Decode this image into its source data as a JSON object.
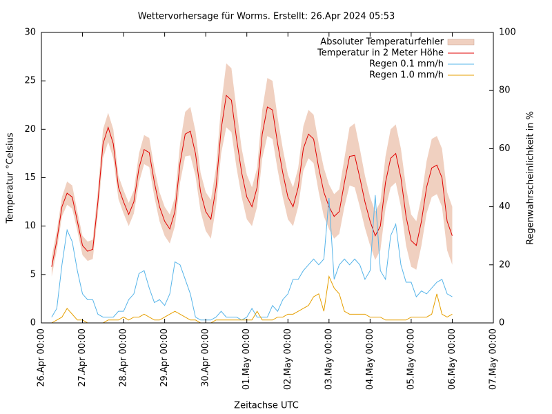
{
  "chart_data": {
    "type": "line",
    "title": "Wettervorhersage für Worms. Erstellt: 26.Apr 2024 05:53",
    "x_label": "Zeitachse UTC",
    "y_label": "Temperatur °Celsius",
    "y2_label": "Regenwahrscheinlichkeit in %",
    "xlim": [
      0,
      264
    ],
    "xticks": [
      {
        "value": 0,
        "label": "26.Apr 00:00"
      },
      {
        "value": 24,
        "label": "27.Apr 00:00"
      },
      {
        "value": 48,
        "label": "28.Apr 00:00"
      },
      {
        "value": 72,
        "label": "29.Apr 00:00"
      },
      {
        "value": 96,
        "label": "30.Apr 00:00"
      },
      {
        "value": 120,
        "label": "01.May 00:00"
      },
      {
        "value": 144,
        "label": "02.May 00:00"
      },
      {
        "value": 168,
        "label": "03.May 00:00"
      },
      {
        "value": 192,
        "label": "04.May 00:00"
      },
      {
        "value": 216,
        "label": "05.May 00:00"
      },
      {
        "value": 240,
        "label": "06.May 00:00"
      },
      {
        "value": 264,
        "label": "07.May 00:00"
      }
    ],
    "ylim": [
      0,
      30
    ],
    "yticks": [
      0,
      5,
      10,
      15,
      20,
      25,
      30
    ],
    "y2lim": [
      0,
      100
    ],
    "y2ticks": [
      0,
      20,
      40,
      60,
      80,
      100
    ],
    "grid": false,
    "legend": "top-right",
    "x": [
      6,
      9,
      12,
      15,
      18,
      21,
      24,
      27,
      30,
      33,
      36,
      39,
      42,
      45,
      48,
      51,
      54,
      57,
      60,
      63,
      66,
      69,
      72,
      75,
      78,
      81,
      84,
      87,
      90,
      93,
      96,
      99,
      102,
      105,
      108,
      111,
      114,
      117,
      120,
      123,
      126,
      129,
      132,
      135,
      138,
      141,
      144,
      147,
      150,
      153,
      156,
      159,
      162,
      165,
      168,
      171,
      174,
      177,
      180,
      183,
      186,
      189,
      192,
      195,
      198,
      201,
      204,
      207,
      210,
      213,
      216,
      219,
      222,
      225,
      228,
      231,
      234,
      237,
      240
    ],
    "series": [
      {
        "name": "Absoluter Temperaturfehler",
        "style": "band",
        "color": "#f0d0c0",
        "values": [
          1.0,
          1.0,
          1.0,
          1.2,
          1.2,
          1.0,
          1.0,
          1.0,
          1.0,
          1.2,
          1.5,
          1.5,
          1.5,
          1.2,
          1.2,
          1.2,
          1.2,
          1.5,
          1.5,
          1.5,
          1.5,
          1.5,
          1.5,
          1.5,
          1.5,
          2.0,
          2.3,
          2.5,
          2.3,
          2.0,
          2.0,
          2.0,
          2.0,
          2.5,
          3.3,
          3.3,
          3.0,
          2.5,
          2.3,
          2.0,
          2.0,
          2.5,
          3.0,
          3.0,
          2.7,
          2.5,
          2.3,
          2.0,
          2.0,
          2.3,
          2.5,
          2.5,
          2.5,
          2.5,
          2.3,
          2.3,
          2.3,
          2.5,
          3.0,
          3.3,
          3.0,
          2.7,
          2.5,
          2.5,
          2.5,
          2.7,
          3.0,
          3.0,
          3.0,
          3.0,
          2.7,
          2.5,
          2.5,
          2.7,
          3.0,
          3.0,
          3.0,
          3.0,
          3.0
        ]
      },
      {
        "name": "Temperatur in 2 Meter Höhe",
        "style": "line",
        "color": "#e00000",
        "values": [
          5.8,
          8.5,
          12.0,
          13.4,
          13.0,
          10.5,
          8.0,
          7.4,
          7.6,
          12.5,
          18.5,
          20.2,
          18.5,
          14.0,
          12.5,
          11.2,
          12.5,
          16.0,
          17.9,
          17.6,
          14.5,
          12.0,
          10.5,
          9.7,
          11.5,
          16.5,
          19.5,
          19.8,
          17.5,
          13.5,
          11.5,
          10.7,
          14.0,
          20.0,
          23.5,
          23.0,
          19.0,
          15.5,
          13.0,
          12.0,
          14.0,
          19.5,
          22.3,
          22.0,
          18.5,
          15.5,
          13.0,
          12.0,
          14.0,
          18.0,
          19.5,
          19.0,
          16.0,
          13.5,
          12.0,
          11.0,
          11.5,
          14.5,
          17.2,
          17.3,
          15.0,
          12.5,
          10.5,
          9.0,
          10.0,
          14.5,
          17.0,
          17.5,
          15.0,
          11.0,
          8.5,
          8.0,
          10.5,
          14.0,
          16.0,
          16.3,
          15.0,
          10.5,
          9.0
        ]
      },
      {
        "name": "Regen 0.1 mm/h",
        "style": "line",
        "axis": "y2",
        "color": "#56b4e9",
        "values": [
          2,
          5,
          20,
          32,
          28,
          18,
          10,
          8,
          8,
          3,
          2,
          2,
          2,
          4,
          4,
          8,
          10,
          17,
          18,
          12,
          7,
          8,
          6,
          10,
          21,
          20,
          15,
          10,
          2,
          1,
          1,
          1,
          2,
          4,
          2,
          2,
          2,
          1,
          2,
          5,
          2,
          2,
          2,
          6,
          4,
          8,
          10,
          15,
          15,
          18,
          20,
          22,
          20,
          22,
          43,
          15,
          20,
          22,
          20,
          22,
          20,
          15,
          18,
          44,
          18,
          15,
          30,
          34,
          20,
          14,
          14,
          9,
          11,
          10,
          12,
          14,
          15,
          10,
          9
        ]
      },
      {
        "name": "Regen 1.0 mm/h",
        "style": "line",
        "axis": "y2",
        "color": "#e69f00",
        "values": [
          0,
          1,
          2,
          5,
          3,
          1,
          1,
          0,
          0,
          0,
          0,
          1,
          1,
          1,
          2,
          1,
          2,
          2,
          3,
          2,
          1,
          1,
          2,
          3,
          4,
          3,
          2,
          1,
          1,
          0,
          0,
          0,
          1,
          1,
          1,
          1,
          1,
          1,
          1,
          1,
          4,
          1,
          1,
          1,
          2,
          2,
          3,
          3,
          4,
          5,
          6,
          9,
          10,
          4,
          16,
          12,
          10,
          4,
          3,
          3,
          3,
          3,
          2,
          2,
          2,
          1,
          1,
          1,
          1,
          1,
          2,
          2,
          2,
          2,
          3,
          10,
          3,
          2,
          3
        ]
      }
    ]
  }
}
